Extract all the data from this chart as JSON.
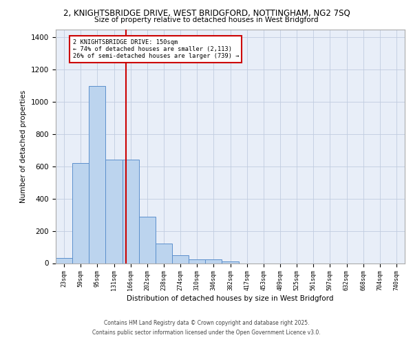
{
  "title_line1": "2, KNIGHTSBRIDGE DRIVE, WEST BRIDGFORD, NOTTINGHAM, NG2 7SQ",
  "title_line2": "Size of property relative to detached houses in West Bridgford",
  "xlabel": "Distribution of detached houses by size in West Bridgford",
  "ylabel": "Number of detached properties",
  "bar_labels": [
    "23sqm",
    "59sqm",
    "95sqm",
    "131sqm",
    "166sqm",
    "202sqm",
    "238sqm",
    "274sqm",
    "310sqm",
    "346sqm",
    "382sqm",
    "417sqm",
    "453sqm",
    "489sqm",
    "525sqm",
    "561sqm",
    "597sqm",
    "632sqm",
    "668sqm",
    "704sqm",
    "740sqm"
  ],
  "bar_values": [
    30,
    620,
    1100,
    640,
    640,
    290,
    120,
    47,
    25,
    25,
    10,
    0,
    0,
    0,
    0,
    0,
    0,
    0,
    0,
    0,
    0
  ],
  "bar_color": "#bcd4ee",
  "bar_edgecolor": "#5b8fcc",
  "bar_width": 1.0,
  "vline_x": 3.74,
  "vline_color": "#cc0000",
  "annotation_text": "2 KNIGHTSBRIDGE DRIVE: 150sqm\n← 74% of detached houses are smaller (2,113)\n26% of semi-detached houses are larger (739) →",
  "ylim": [
    0,
    1450
  ],
  "yticks": [
    0,
    200,
    400,
    600,
    800,
    1000,
    1200,
    1400
  ],
  "background_color": "#e8eef8",
  "grid_color": "#c0cce0",
  "footer_line1": "Contains HM Land Registry data © Crown copyright and database right 2025.",
  "footer_line2": "Contains public sector information licensed under the Open Government Licence v3.0."
}
